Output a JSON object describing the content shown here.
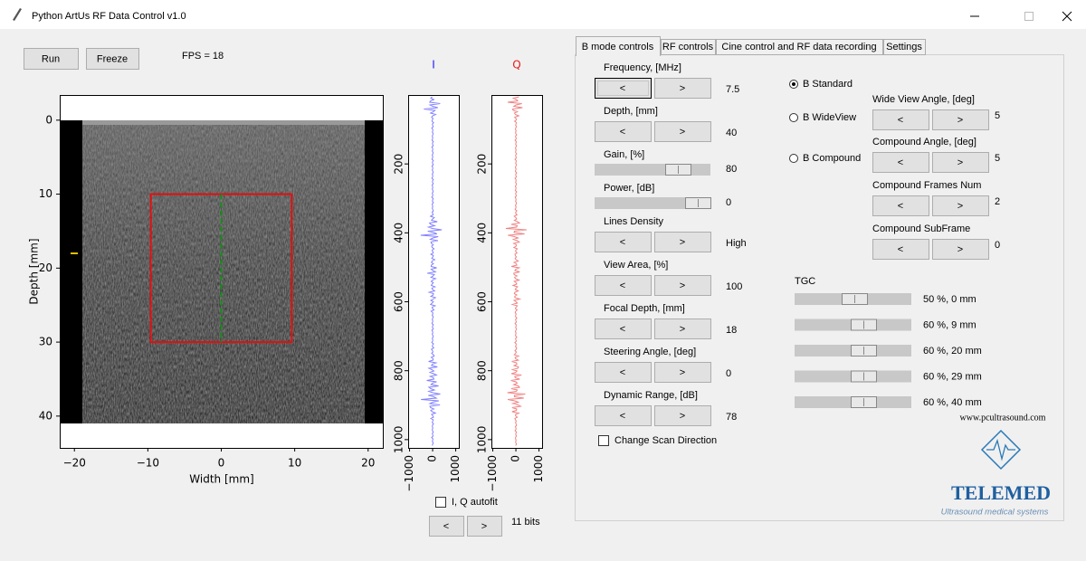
{
  "window": {
    "title": "Python ArtUs RF Data Control v1.0"
  },
  "toolbar": {
    "run": "Run",
    "freeze": "Freeze",
    "fps": "FPS = 18"
  },
  "stepper": {
    "prev": "<",
    "next": ">"
  },
  "image_plot": {
    "xlabel": "Width [mm]",
    "ylabel": "Depth [mm]",
    "xlim": [
      -22,
      22
    ],
    "ylim": [
      44.3,
      -3.4
    ],
    "xticks": [
      {
        "value": -20,
        "label": "−20"
      },
      {
        "value": -10,
        "label": "−10"
      },
      0,
      10,
      20
    ],
    "yticks": [
      0,
      10,
      20,
      30,
      40
    ],
    "roi": {
      "x": [
        -9.6,
        9.6
      ],
      "y": [
        10,
        30
      ]
    },
    "cursor_x": 0
  },
  "iq_plots": [
    {
      "name": "I",
      "color": "#1a1aff",
      "trace_color": "#8080ff",
      "xlim": [
        -1060,
        1135
      ],
      "ylim": [
        1024,
        0
      ],
      "xticks": [
        {
          "value": -1000,
          "label": "−1000"
        },
        0,
        1000
      ],
      "yticks": [
        200,
        400,
        600,
        800,
        1000
      ]
    },
    {
      "name": "Q",
      "color": "#e81a1a",
      "trace_color": "#f08080",
      "xlim": [
        -1060,
        1135
      ],
      "ylim": [
        1024,
        0
      ],
      "xticks": [
        {
          "value": -1000,
          "label": "−1000"
        },
        0,
        1000
      ],
      "yticks": [
        200,
        400,
        600,
        800,
        1000
      ]
    }
  ],
  "iq_controls": {
    "autofit": "I, Q autofit",
    "bits": "11 bits"
  },
  "tabs": [
    "B mode controls",
    "RF controls",
    "Cine control and RF data recording",
    "Settings"
  ],
  "b_mode": {
    "controls": [
      {
        "label": "Frequency, [MHz]",
        "kind": "stepper",
        "value": 7.5
      },
      {
        "label": "Depth, [mm]",
        "kind": "stepper",
        "value": 40
      },
      {
        "label": "Gain, [%]",
        "kind": "slider",
        "value": 80
      },
      {
        "label": "Power, [dB]",
        "kind": "slider",
        "value": 0
      },
      {
        "label": "Lines Density",
        "kind": "stepper",
        "value": "High"
      },
      {
        "label": "View Area, [%]",
        "kind": "stepper",
        "value": 100
      },
      {
        "label": "Focal Depth, [mm]",
        "kind": "stepper",
        "value": 18
      },
      {
        "label": "Steering Angle, [deg]",
        "kind": "stepper",
        "value": 0
      },
      {
        "label": "Dynamic Range, [dB]",
        "kind": "stepper",
        "value": 78
      }
    ],
    "scan_direction": "Change Scan Direction",
    "modes": [
      "B Standard",
      "B WideView",
      "B Compound"
    ],
    "compound": [
      {
        "label": "Wide View Angle, [deg]",
        "value": 5
      },
      {
        "label": "Compound Angle, [deg]",
        "value": 5
      },
      {
        "label": "Compound Frames Num",
        "value": 2
      },
      {
        "label": "Compound SubFrame",
        "value": 0
      }
    ],
    "tgc": {
      "label": "TGC",
      "rows": [
        "50 %,  0 mm",
        "60 %,  9 mm",
        "60 %,  20 mm",
        "60 %,  29 mm",
        "60 %,  40 mm"
      ]
    }
  },
  "logo": {
    "url": "www.pcultrasound.com",
    "brand": "TELEMED",
    "tagline": "Ultrasound medical systems"
  }
}
